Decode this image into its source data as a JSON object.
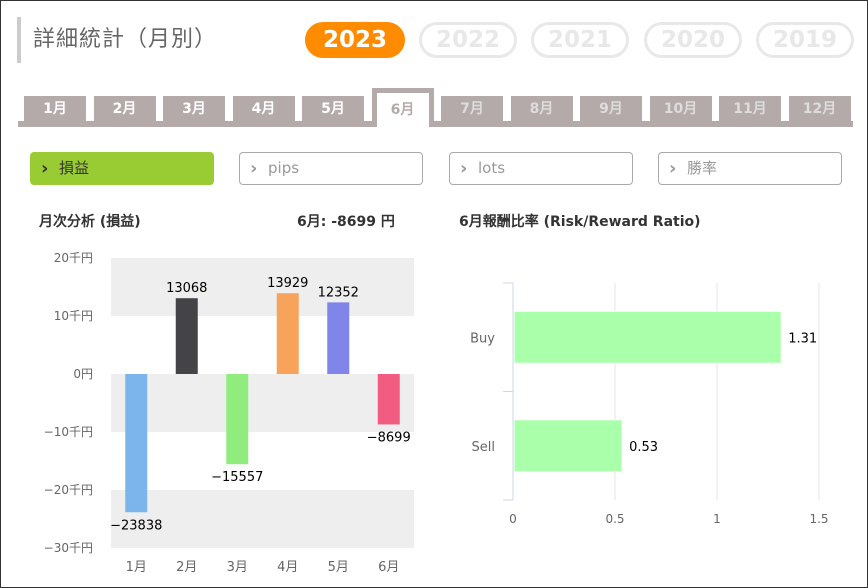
{
  "page_title": "詳細統計（月別）",
  "years": [
    {
      "label": "2023",
      "active": true
    },
    {
      "label": "2022",
      "active": false
    },
    {
      "label": "2021",
      "active": false
    },
    {
      "label": "2020",
      "active": false
    },
    {
      "label": "2019",
      "active": false
    }
  ],
  "months": [
    {
      "label": "1月",
      "state": "normal"
    },
    {
      "label": "2月",
      "state": "normal"
    },
    {
      "label": "3月",
      "state": "normal"
    },
    {
      "label": "4月",
      "state": "normal"
    },
    {
      "label": "5月",
      "state": "normal"
    },
    {
      "label": "6月",
      "state": "active"
    },
    {
      "label": "7月",
      "state": "disabled"
    },
    {
      "label": "8月",
      "state": "disabled"
    },
    {
      "label": "9月",
      "state": "disabled"
    },
    {
      "label": "10月",
      "state": "disabled"
    },
    {
      "label": "11月",
      "state": "disabled"
    },
    {
      "label": "12月",
      "state": "disabled"
    }
  ],
  "metrics": [
    {
      "label": "損益",
      "active": true
    },
    {
      "label": "pips",
      "active": false
    },
    {
      "label": "lots",
      "active": false
    },
    {
      "label": "勝率",
      "active": false
    }
  ],
  "monthly": {
    "title": "月次分析 (損益)",
    "summary": "6月:  -8699 円"
  },
  "rr": {
    "title": "6月報酬比率 (Risk/Reward Ratio)"
  },
  "colors": {
    "accent": "#ff8c00",
    "active_metric": "#99cc33",
    "tab": "#b5aaaa",
    "rr_bar": "#aaffaa"
  },
  "chart_data": [
    {
      "type": "bar",
      "title": "月次分析 (損益)",
      "categories": [
        "1月",
        "2月",
        "3月",
        "4月",
        "5月",
        "6月"
      ],
      "values": [
        -23838,
        13068,
        -15557,
        13929,
        12352,
        -8699
      ],
      "colors": [
        "#7cb5ec",
        "#434348",
        "#90ed7d",
        "#f7a35c",
        "#8085e9",
        "#f15c80"
      ],
      "yticks": [
        20000,
        10000,
        0,
        -10000,
        -20000,
        -30000
      ],
      "ytick_labels": [
        "20千円",
        "10千円",
        "0円",
        "−10千円",
        "−20千円",
        "−30千円"
      ],
      "ylim": [
        -30000,
        20000
      ],
      "grid": "alternate-bands"
    },
    {
      "type": "bar",
      "orientation": "horizontal",
      "title": "6月報酬比率 (Risk/Reward Ratio)",
      "categories": [
        "Buy",
        "Sell"
      ],
      "values": [
        1.31,
        0.53
      ],
      "xticks": [
        0,
        0.5,
        1,
        1.5
      ],
      "xtick_labels": [
        "0",
        "0.5",
        "1",
        "1.5"
      ],
      "xlim": [
        0,
        1.5
      ],
      "grid": "vertical"
    }
  ]
}
